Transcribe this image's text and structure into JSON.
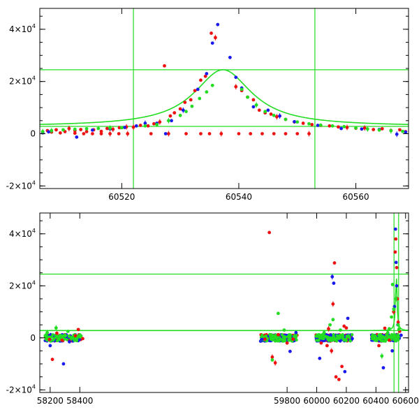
{
  "colors": {
    "red": "#ee1111",
    "blue": "#1a1aee",
    "green": "#22dd22",
    "frame": "#000000"
  },
  "chart_data": [
    {
      "type": "scatter",
      "panel": "top",
      "xlim": [
        60506,
        60569
      ],
      "ylim": [
        -21000,
        48000
      ],
      "y_ticks": [
        {
          "v": 40000,
          "label": "4×10",
          "exp": "4"
        },
        {
          "v": 20000,
          "label": "2×10",
          "exp": "4"
        },
        {
          "v": 0,
          "label": "0",
          "exp": ""
        },
        {
          "v": -20000,
          "label": "-2×10",
          "exp": "4"
        }
      ],
      "x_ticks": [
        60520,
        60540,
        60560
      ],
      "reference_lines": {
        "vertical": [
          60522,
          60553
        ],
        "horizontal": [
          24500,
          2800
        ]
      },
      "model_curve": {
        "peak_x": 60537.3,
        "peak_y": 24500,
        "baseline": 2800,
        "width": 6
      },
      "series": [
        {
          "color": "red",
          "points": [
            [
              60506.5,
              500
            ],
            [
              60507.3,
              1200
            ],
            [
              60508,
              600
            ],
            [
              60508.8,
              1500
            ],
            [
              60509.5,
              300
            ],
            [
              60510.3,
              800
            ],
            [
              60511,
              2000
            ],
            [
              60512,
              1200
            ],
            [
              60513,
              1600
            ],
            [
              60514,
              800
            ],
            [
              60515.2,
              1500
            ],
            [
              60516.5,
              900
            ],
            [
              60517.5,
              2000
            ],
            [
              60518.5,
              1700
            ],
            [
              60519.6,
              2300
            ],
            [
              60520.8,
              2600
            ],
            [
              60522,
              2500
            ],
            [
              60523.2,
              3200
            ],
            [
              60524.5,
              3000
            ],
            [
              60525.5,
              3800
            ],
            [
              60526.5,
              4500
            ],
            [
              60527.3,
              26000
            ],
            [
              60528.3,
              6800
            ],
            [
              60529,
              8000
            ],
            [
              60530,
              9500
            ],
            [
              60530.8,
              12000
            ],
            [
              60531.8,
              13000
            ],
            [
              60532.5,
              16500
            ],
            [
              60533.5,
              20500
            ],
            [
              60534.3,
              22000
            ],
            [
              60535.3,
              38500
            ],
            [
              60536,
              36800
            ],
            [
              60539.5,
              18000
            ],
            [
              60540.5,
              16500
            ],
            [
              60541.5,
              14000
            ],
            [
              60542.5,
              13000
            ],
            [
              60543.5,
              9000
            ],
            [
              60544.5,
              8000
            ],
            [
              60545.5,
              7500
            ],
            [
              60546.5,
              6500
            ],
            [
              60548,
              5500
            ],
            [
              60549.5,
              4500
            ],
            [
              60551,
              4000
            ],
            [
              60552.5,
              3500
            ],
            [
              60554,
              3200
            ],
            [
              60555.5,
              3000
            ],
            [
              60557,
              2600
            ],
            [
              60558.5,
              2400
            ],
            [
              60560,
              2100
            ],
            [
              60561.5,
              2200
            ],
            [
              60563,
              1600
            ],
            [
              60564.5,
              1900
            ],
            [
              60566,
              1200
            ],
            [
              60567.5,
              1500
            ],
            [
              60568.5,
              800
            ],
            [
              60512,
              200
            ],
            [
              60513.5,
              0
            ],
            [
              60515,
              0
            ],
            [
              60516.5,
              0
            ],
            [
              60518,
              0
            ],
            [
              60519.5,
              0
            ],
            [
              60521,
              0
            ],
            [
              60525,
              0
            ],
            [
              60528,
              0
            ],
            [
              60531,
              0
            ],
            [
              60533.5,
              0
            ],
            [
              60535,
              0
            ],
            [
              60537,
              0
            ],
            [
              60540,
              0
            ],
            [
              60542,
              0
            ],
            [
              60544,
              0
            ],
            [
              60546,
              0
            ],
            [
              60548,
              0
            ],
            [
              60550,
              0
            ],
            [
              60552,
              0
            ]
          ]
        },
        {
          "color": "blue",
          "points": [
            [
              60506.5,
              300
            ],
            [
              60507.5,
              700
            ],
            [
              60512.3,
              -1300
            ],
            [
              60515,
              1400
            ],
            [
              60518,
              1800
            ],
            [
              60520.5,
              2400
            ],
            [
              60522.5,
              3000
            ],
            [
              60524,
              4000
            ],
            [
              60526,
              4000
            ],
            [
              60527.5,
              0
            ],
            [
              60528.5,
              5000
            ],
            [
              60530.5,
              9000
            ],
            [
              60533,
              17000
            ],
            [
              60534.5,
              23000
            ],
            [
              60535.5,
              34700
            ],
            [
              60536.4,
              41800
            ],
            [
              60538.5,
              29200
            ],
            [
              60539.5,
              21600
            ],
            [
              60540.5,
              17500
            ],
            [
              60542.5,
              10300
            ],
            [
              60545,
              9000
            ],
            [
              60547,
              6800
            ],
            [
              60549.5,
              4600
            ],
            [
              60553.5,
              3200
            ],
            [
              60557.5,
              2000
            ],
            [
              60561,
              1800
            ],
            [
              60564,
              1600
            ],
            [
              60567,
              -200
            ],
            [
              60568.5,
              600
            ]
          ]
        },
        {
          "color": "green",
          "points": [
            [
              60506.5,
              800
            ],
            [
              60508,
              1200
            ],
            [
              60510,
              1500
            ],
            [
              60512,
              1700
            ],
            [
              60514,
              1900
            ],
            [
              60516,
              2000
            ],
            [
              60518,
              2200
            ],
            [
              60520,
              2300
            ],
            [
              60524,
              3000
            ],
            [
              60526,
              3500
            ],
            [
              60528,
              5000
            ],
            [
              60530,
              7000
            ],
            [
              60531,
              8500
            ],
            [
              60532,
              10500
            ],
            [
              60533.3,
              13500
            ],
            [
              60534.5,
              16000
            ],
            [
              60535.5,
              18500
            ],
            [
              60540.5,
              17000
            ],
            [
              60541.5,
              14000
            ],
            [
              60543,
              11000
            ],
            [
              60544.5,
              8500
            ],
            [
              60546,
              7000
            ],
            [
              60548,
              5500
            ],
            [
              60550,
              4500
            ],
            [
              60552,
              3800
            ],
            [
              60554,
              3300
            ],
            [
              60556,
              3000
            ],
            [
              60558,
              2700
            ],
            [
              60560,
              2200
            ],
            [
              60562,
              1800
            ],
            [
              60564,
              1400
            ],
            [
              60566,
              1100
            ],
            [
              60568,
              900
            ]
          ]
        }
      ]
    },
    {
      "type": "scatter",
      "panel": "bottom",
      "xlim": [
        58130,
        60620
      ],
      "ylim": [
        -21000,
        48000
      ],
      "y_ticks": [
        {
          "v": 40000,
          "label": "4×10",
          "exp": "4"
        },
        {
          "v": 20000,
          "label": "2×10",
          "exp": "4"
        },
        {
          "v": 0,
          "label": "0",
          "exp": ""
        },
        {
          "v": -20000,
          "label": "-2×10",
          "exp": "4"
        }
      ],
      "x_ticks": [
        58200,
        58400,
        59800,
        60000,
        60200,
        60400,
        60600
      ],
      "reference_lines": {
        "vertical": [
          60522,
          60553
        ],
        "horizontal": [
          24500,
          2800
        ]
      },
      "model_curve": {
        "peak_x": 60537.3,
        "peak_y": 24500,
        "baseline": 2800,
        "width": 6
      },
      "series": [
        {
          "color": "red",
          "points": [
            [
              58195,
              -600
            ],
            [
              58215,
              -8300
            ],
            [
              58245,
              1800
            ],
            [
              58280,
              -900
            ],
            [
              58330,
              -1200
            ],
            [
              58370,
              800
            ],
            [
              58390,
              3200
            ],
            [
              58420,
              -300
            ],
            [
              59650,
              -500
            ],
            [
              59680,
              40500
            ],
            [
              59700,
              -7400
            ],
            [
              59720,
              -9600
            ],
            [
              59740,
              1200
            ],
            [
              59800,
              -2000
            ],
            [
              59840,
              -500
            ],
            [
              60030,
              -2000
            ],
            [
              60070,
              -3000
            ],
            [
              60080,
              3500
            ],
            [
              60100,
              -5000
            ],
            [
              60110,
              13000
            ],
            [
              60120,
              28800
            ],
            [
              60130,
              -15000
            ],
            [
              60150,
              -16000
            ],
            [
              60170,
              -11000
            ],
            [
              60185,
              4500
            ],
            [
              60200,
              3800
            ],
            [
              60420,
              -3000
            ],
            [
              60460,
              3700
            ],
            [
              60490,
              -900
            ],
            [
              60520,
              10000
            ],
            [
              60530,
              33000
            ],
            [
              60534,
              38000
            ],
            [
              60540,
              27000
            ],
            [
              60545,
              15000
            ],
            [
              60550,
              6000
            ],
            [
              60560,
              2500
            ]
          ]
        },
        {
          "color": "blue",
          "points": [
            [
              58200,
              -3000
            ],
            [
              58290,
              -10000
            ],
            [
              58330,
              -1500
            ],
            [
              59630,
              -600
            ],
            [
              59820,
              -5200
            ],
            [
              59860,
              2000
            ],
            [
              60020,
              -7900
            ],
            [
              60105,
              23500
            ],
            [
              60115,
              21000
            ],
            [
              60190,
              -13000
            ],
            [
              60210,
              7500
            ],
            [
              60240,
              -300
            ],
            [
              60450,
              -11500
            ],
            [
              60510,
              -5000
            ],
            [
              60525,
              12000
            ],
            [
              60532,
              41800
            ],
            [
              60536,
              29000
            ],
            [
              60540,
              20000
            ],
            [
              60548,
              5000
            ],
            [
              60570,
              1000
            ]
          ]
        },
        {
          "color": "green",
          "points": [
            [
              58180,
              2000
            ],
            [
              58240,
              3800
            ],
            [
              58320,
              2500
            ],
            [
              59700,
              -8500
            ],
            [
              59740,
              9400
            ],
            [
              59780,
              3000
            ],
            [
              60050,
              2000
            ],
            [
              60090,
              5000
            ],
            [
              60110,
              7000
            ],
            [
              60160,
              3000
            ],
            [
              60440,
              -7000
            ],
            [
              60480,
              2000
            ],
            [
              60490,
              3500
            ],
            [
              60505,
              8000
            ],
            [
              60512,
              20500
            ],
            [
              60520,
              11000
            ],
            [
              60535,
              15000
            ],
            [
              60550,
              5000
            ],
            [
              60555,
              3300
            ]
          ]
        }
      ],
      "clusters": [
        {
          "x0": 58165,
          "x1": 58410,
          "color": "red"
        },
        {
          "x0": 58165,
          "x1": 58410,
          "color": "blue"
        },
        {
          "x0": 58165,
          "x1": 58410,
          "color": "green"
        },
        {
          "x0": 59620,
          "x1": 59870,
          "color": "red"
        },
        {
          "x0": 59620,
          "x1": 59870,
          "color": "blue"
        },
        {
          "x0": 59620,
          "x1": 59870,
          "color": "green"
        },
        {
          "x0": 59995,
          "x1": 60240,
          "color": "red"
        },
        {
          "x0": 59995,
          "x1": 60240,
          "color": "blue"
        },
        {
          "x0": 59995,
          "x1": 60240,
          "color": "green"
        },
        {
          "x0": 60370,
          "x1": 60560,
          "color": "red"
        },
        {
          "x0": 60370,
          "x1": 60560,
          "color": "blue"
        },
        {
          "x0": 60370,
          "x1": 60560,
          "color": "green"
        }
      ]
    }
  ]
}
